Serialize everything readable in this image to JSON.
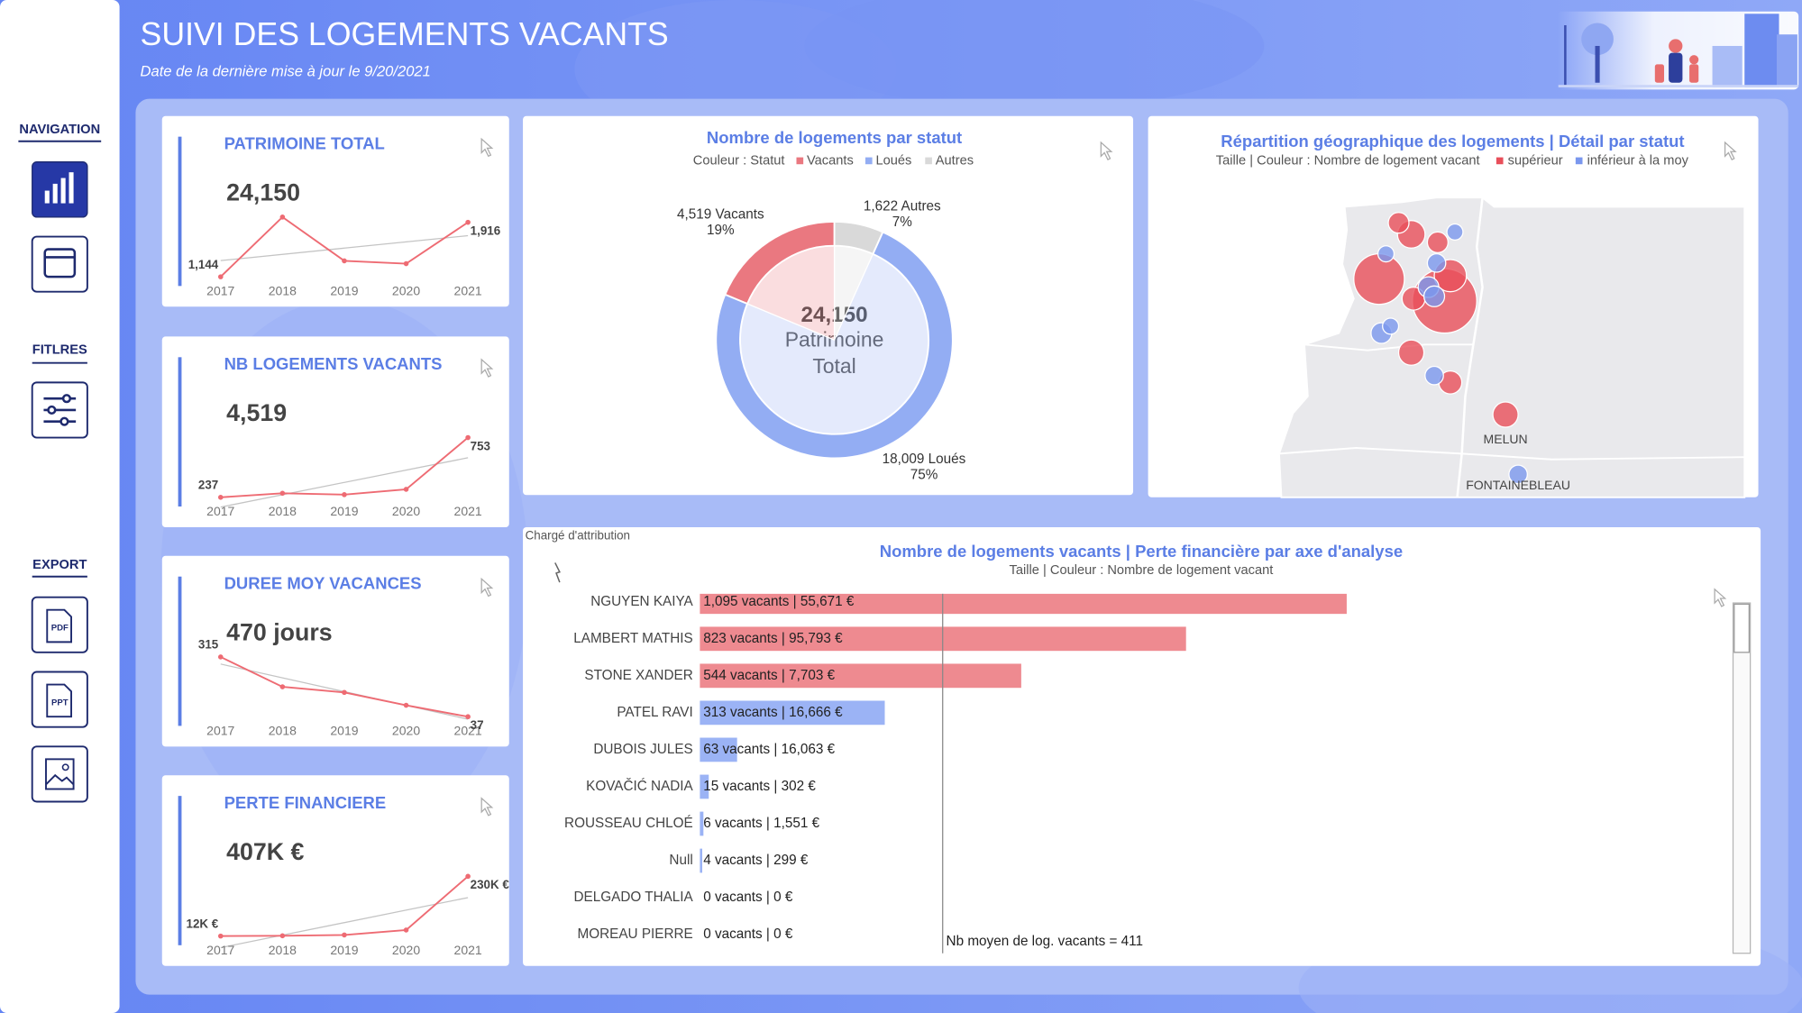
{
  "header": {
    "title": "SUIVI DES LOGEMENTS VACANTS",
    "subtitle": "Date de la dernière mise à jour le 9/20/2021"
  },
  "sidebar": {
    "navigation": "NAVIGATION",
    "filters": "FITLRES",
    "export": "EXPORT",
    "export_buttons": [
      "PDF",
      "PPT"
    ]
  },
  "chart_data": [
    {
      "type": "line",
      "title": "PATRIMOINE TOTAL",
      "kpi": "24,150",
      "categories": [
        "2017",
        "2018",
        "2019",
        "2020",
        "2021"
      ],
      "values": [
        1144,
        1990,
        1370,
        1330,
        1916
      ],
      "value_labels": [
        "1,144",
        null,
        null,
        null,
        "1,916"
      ],
      "color": "#ee6b73",
      "trend_color": "#c4c4c4"
    },
    {
      "type": "line",
      "title": "NB LOGEMENTS VACANTS",
      "kpi": "4,519",
      "categories": [
        "2017",
        "2018",
        "2019",
        "2020",
        "2021"
      ],
      "values": [
        237,
        272,
        260,
        306,
        753
      ],
      "value_labels": [
        "237",
        null,
        null,
        null,
        "753"
      ],
      "color": "#ee6b73",
      "trend_color": "#c4c4c4"
    },
    {
      "type": "line",
      "title": "DUREE MOY VACANCES",
      "kpi": "470 jours",
      "categories": [
        "2017",
        "2018",
        "2019",
        "2020",
        "2021"
      ],
      "values": [
        315,
        176,
        150,
        90,
        37
      ],
      "value_labels": [
        "315",
        null,
        null,
        null,
        "37"
      ],
      "color": "#ee6b73",
      "trend_color": "#c4c4c4"
    },
    {
      "type": "line",
      "title": "PERTE FINANCIERE",
      "kpi": "407K €",
      "categories": [
        "2017",
        "2018",
        "2019",
        "2020",
        "2021"
      ],
      "values": [
        12000,
        13000,
        16000,
        34000,
        230000
      ],
      "value_labels": [
        "12K €",
        null,
        null,
        null,
        "230K €"
      ],
      "color": "#ee6b73",
      "trend_color": "#c4c4c4"
    },
    {
      "type": "pie",
      "title": "Nombre de logements par statut",
      "subtitle": "Couleur : Statut",
      "categories": [
        "Vacants",
        "Loués",
        "Autres"
      ],
      "values": [
        4519,
        18009,
        1622
      ],
      "value_labels": [
        "4,519 Vacants",
        "18,009 Loués",
        "1,622 Autres"
      ],
      "percent_labels": [
        "19%",
        "75%",
        "7%"
      ],
      "colors": [
        "#ea7880",
        "#93adf3",
        "#d9d9d9"
      ],
      "center_value": "24,150",
      "center_label": [
        "Patrimoine",
        "Total"
      ]
    },
    {
      "type": "map",
      "title": "Répartition géographique des logements | Détail par statut",
      "subtitle": "Taille | Couleur : Nombre de logement vacant",
      "legend": [
        {
          "name": "supérieur",
          "color": "#e84f5a"
        },
        {
          "name": "inférieur à la moy",
          "color": "#7a97ee"
        }
      ],
      "places": [
        "MELUN",
        "FONTAINEBLEAU"
      ]
    },
    {
      "type": "hbar",
      "axis_label": "Chargé d'attribution",
      "title": "Nombre de logements vacants | Perte financière par axe d'analyse",
      "subtitle": "Taille | Couleur : Nombre de logement vacant",
      "categories": [
        "NGUYEN KAIYA",
        "LAMBERT MATHIS",
        "STONE XANDER",
        "PATEL RAVI",
        "DUBOIS JULES",
        "KOVAČIĆ NADIA",
        "ROUSSEAU CHLOÉ",
        "Null",
        "DELGADO THALIA",
        "MOREAU PIERRE"
      ],
      "values": [
        1095,
        823,
        544,
        313,
        63,
        15,
        6,
        4,
        0,
        0
      ],
      "value_labels": [
        "1,095 vacants | 55,671 €",
        "823 vacants | 95,793 €",
        "544 vacants | 7,703 €",
        "313 vacants | 16,666 €",
        "63 vacants | 16,063 €",
        "15 vacants | 302 €",
        "6 vacants | 1,551 €",
        "4 vacants | 299 €",
        "0 vacants | 0 €",
        "0 vacants | 0 €"
      ],
      "average": 411,
      "average_label": "Nb moyen de log. vacants = 411",
      "above_color": "#ee8a90",
      "below_color": "#9bb3f5"
    }
  ]
}
